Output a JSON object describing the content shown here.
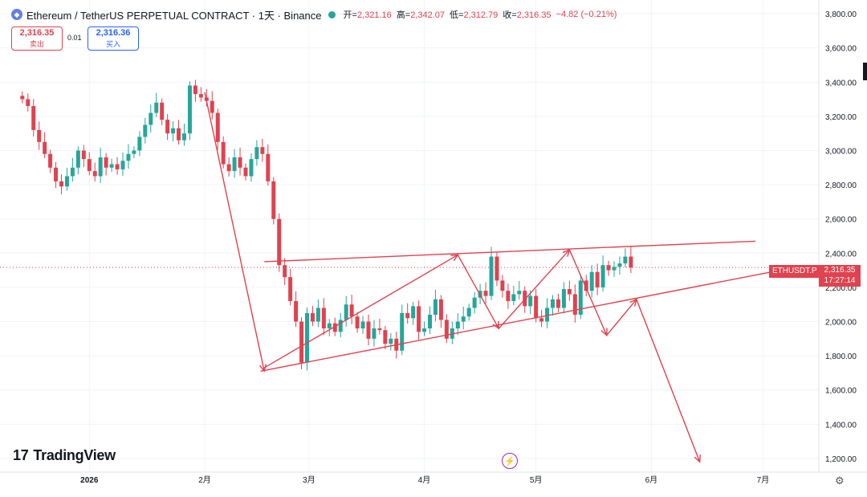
{
  "header": {
    "coin_icon": "ethereum-coin-icon",
    "title": "Ethereum / TetherUS PERPETUAL CONTRACT · 1天 · Binance",
    "status_color": "#26a69a",
    "open_label": "开=",
    "open": "2,321.16",
    "high_label": "高=",
    "high": "2,342.07",
    "low_label": "低=",
    "low": "2,312.79",
    "close_label": "收=",
    "close": "2,316.35",
    "change": "−4.82 (−0.21%)"
  },
  "trade": {
    "sell_price": "2,316.35",
    "sell_label": "卖出",
    "spread": "0.01",
    "buy_price": "2,316.36",
    "buy_label": "买入"
  },
  "brand": {
    "logo_icon": "tradingview-logo-icon",
    "name": "TradingView"
  },
  "price_tag": {
    "symbol": "ETHUSDT.P",
    "price": "2,316.35",
    "countdown": "17:27:14"
  },
  "icons": {
    "settings": "gear-icon",
    "event": "lightning-event-icon"
  },
  "colors": {
    "up": "#26a69a",
    "down": "#e0424f",
    "drawing": "#e0424f"
  },
  "chart_data": {
    "type": "candlestick",
    "title": "Ethereum / TetherUS PERPETUAL CONTRACT · 1天 · Binance",
    "yaxis": {
      "ticks": [
        1200,
        1400,
        1600,
        1800,
        2000,
        2200,
        2400,
        2600,
        2800,
        3000,
        3200,
        3400,
        3600,
        3800
      ],
      "tick_labels": [
        "1,200.00",
        "1,400.00",
        "1,600.00",
        "1,800.00",
        "2,000.00",
        "2,200.00",
        "2,400.00",
        "2,600.00",
        "2,800.00",
        "3,000.00",
        "3,200.00",
        "3,400.00",
        "3,600.00",
        "3,800.00"
      ],
      "ylim": [
        1120,
        3880
      ]
    },
    "xaxis": {
      "ticks": [
        {
          "day": 0,
          "label": "2026"
        },
        {
          "day": 31,
          "label": "2月"
        },
        {
          "day": 59,
          "label": "3月"
        },
        {
          "day": 90,
          "label": "4月"
        },
        {
          "day": 120,
          "label": "5月"
        },
        {
          "day": 151,
          "label": "6月"
        },
        {
          "day": 181,
          "label": "7月"
        }
      ],
      "xlim": [
        -24,
        196
      ]
    },
    "last_price": 2316.35,
    "candles_close": [
      3300,
      3260,
      3120,
      3050,
      2980,
      2900,
      2820,
      2790,
      2850,
      2900,
      3000,
      2950,
      2880,
      2850,
      2960,
      2900,
      2920,
      2890,
      2940,
      2980,
      3000,
      3080,
      3150,
      3220,
      3280,
      3180,
      3100,
      3130,
      3060,
      3100,
      3380,
      3330,
      3310,
      3290,
      3220,
      3050,
      2920,
      2880,
      2960,
      2900,
      2850,
      2950,
      3020,
      2980,
      2820,
      2600,
      2330,
      2260,
      2120,
      2000,
      1760,
      2050,
      2000,
      2080,
      1960,
      1990,
      1940,
      2010,
      2100,
      2030,
      1960,
      2000,
      1900,
      1960,
      1950,
      1870,
      1900,
      1830,
      2050,
      2020,
      2090,
      1940,
      1960,
      2040,
      2130,
      2010,
      1900,
      1960,
      2000,
      2030,
      2080,
      2140,
      2180,
      2150,
      2380,
      2240,
      2180,
      2120,
      2160,
      2180,
      2090,
      2150,
      2020,
      2000,
      2080,
      2130,
      2080,
      2190,
      2160,
      2040,
      2240,
      2180,
      2290,
      2200,
      2330,
      2300,
      2320,
      2340,
      2380,
      2316
    ],
    "drawings": {
      "upper_channel_line": [
        [
          47,
          2350
        ],
        [
          179,
          2470
        ]
      ],
      "lower_channel_line": [
        [
          46,
          1710
        ],
        [
          188,
          2310
        ]
      ],
      "impulse_down": [
        [
          31,
          3340
        ],
        [
          47,
          1710
        ]
      ],
      "zigzag_up": [
        [
          47,
          1730
        ],
        [
          99,
          2390
        ],
        [
          110,
          1960
        ],
        [
          129,
          2420
        ]
      ],
      "projection": [
        [
          129,
          2420
        ],
        [
          139,
          1920
        ],
        [
          147,
          2130
        ],
        [
          164,
          1180
        ]
      ]
    }
  }
}
